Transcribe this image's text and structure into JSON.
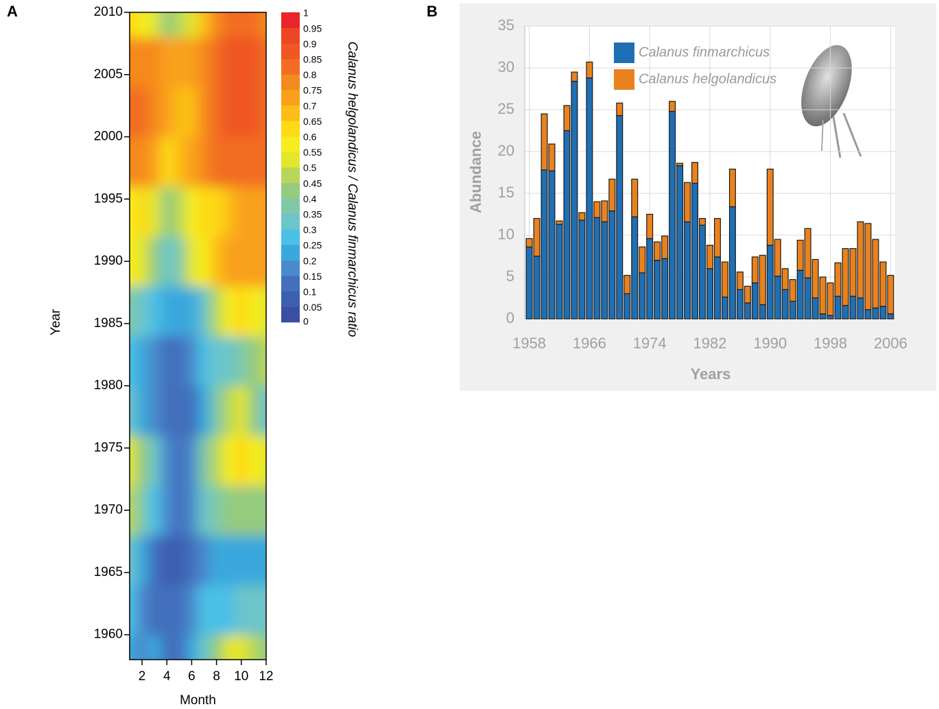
{
  "chart_data": [
    {
      "type": "heatmap",
      "label": "A",
      "xlabel": "Month",
      "ylabel": "Year",
      "x": [
        1,
        2,
        3,
        4,
        5,
        6,
        7,
        8,
        9,
        10,
        11,
        12
      ],
      "y": [
        1958,
        1962,
        1966,
        1970,
        1974,
        1978,
        1982,
        1986,
        1990,
        1994,
        1998,
        2002,
        2006,
        2010
      ],
      "z": [
        [
          0.2,
          0.15,
          0.2,
          0.1,
          0.1,
          0.2,
          0.3,
          0.4,
          0.5,
          0.5,
          0.45,
          0.4
        ],
        [
          0.25,
          0.15,
          0.1,
          0.1,
          0.1,
          0.15,
          0.25,
          0.25,
          0.25,
          0.3,
          0.3,
          0.3
        ],
        [
          0.3,
          0.2,
          0.1,
          0.05,
          0.05,
          0.1,
          0.15,
          0.2,
          0.2,
          0.2,
          0.2,
          0.2
        ],
        [
          0.45,
          0.35,
          0.25,
          0.15,
          0.1,
          0.15,
          0.3,
          0.35,
          0.4,
          0.4,
          0.4,
          0.4
        ],
        [
          0.5,
          0.4,
          0.3,
          0.15,
          0.1,
          0.15,
          0.35,
          0.45,
          0.55,
          0.6,
          0.55,
          0.5
        ],
        [
          0.3,
          0.2,
          0.15,
          0.1,
          0.1,
          0.1,
          0.2,
          0.35,
          0.45,
          0.5,
          0.4,
          0.3
        ],
        [
          0.25,
          0.2,
          0.15,
          0.1,
          0.1,
          0.15,
          0.25,
          0.3,
          0.3,
          0.35,
          0.4,
          0.45
        ],
        [
          0.35,
          0.3,
          0.25,
          0.2,
          0.2,
          0.2,
          0.3,
          0.45,
          0.55,
          0.6,
          0.55,
          0.5
        ],
        [
          0.55,
          0.5,
          0.4,
          0.3,
          0.35,
          0.5,
          0.55,
          0.65,
          0.7,
          0.7,
          0.7,
          0.7
        ],
        [
          0.55,
          0.6,
          0.5,
          0.4,
          0.45,
          0.55,
          0.6,
          0.6,
          0.65,
          0.7,
          0.7,
          0.7
        ],
        [
          0.75,
          0.75,
          0.7,
          0.6,
          0.65,
          0.7,
          0.75,
          0.8,
          0.8,
          0.8,
          0.8,
          0.8
        ],
        [
          0.8,
          0.8,
          0.75,
          0.7,
          0.65,
          0.65,
          0.75,
          0.8,
          0.85,
          0.85,
          0.85,
          0.8
        ],
        [
          0.75,
          0.75,
          0.75,
          0.7,
          0.7,
          0.7,
          0.75,
          0.8,
          0.85,
          0.85,
          0.85,
          0.8
        ],
        [
          0.6,
          0.55,
          0.5,
          0.4,
          0.45,
          0.5,
          0.65,
          0.75,
          0.8,
          0.8,
          0.8,
          0.75
        ]
      ],
      "xlim": [
        1,
        12
      ],
      "xticks": [
        2,
        4,
        6,
        8,
        10,
        12
      ],
      "ylim": [
        1958,
        2010
      ],
      "yticks": [
        1960,
        1965,
        1970,
        1975,
        1980,
        1985,
        1990,
        1995,
        2000,
        2005,
        2010
      ],
      "colorbar": {
        "label": "Calanus helgolandicus / Calanus finmarchicus ratio",
        "ticks": [
          0,
          0.05,
          0.1,
          0.15,
          0.2,
          0.25,
          0.3,
          0.35,
          0.4,
          0.45,
          0.5,
          0.55,
          0.6,
          0.65,
          0.7,
          0.75,
          0.8,
          0.85,
          0.9,
          0.95,
          1
        ],
        "colors": [
          "#3a4fa3",
          "#3d5fb0",
          "#4270bd",
          "#4a8acb",
          "#3aa8dd",
          "#4cc0e6",
          "#6cc5c9",
          "#7fc9a9",
          "#95cb7f",
          "#b8d758",
          "#e3e62a",
          "#f7ec1e",
          "#fdd916",
          "#fcbd16",
          "#f9a01a",
          "#f58a1f",
          "#f26d21",
          "#ef5723",
          "#ee4525",
          "#e9242a"
        ]
      }
    },
    {
      "type": "bar",
      "label": "B",
      "stacked": true,
      "xlabel": "Years",
      "ylabel": "Abundance",
      "grid": true,
      "x": [
        1958,
        1959,
        1960,
        1961,
        1962,
        1963,
        1964,
        1965,
        1966,
        1967,
        1968,
        1969,
        1970,
        1971,
        1972,
        1973,
        1974,
        1975,
        1976,
        1977,
        1978,
        1979,
        1980,
        1981,
        1982,
        1983,
        1984,
        1985,
        1986,
        1987,
        1988,
        1989,
        1990,
        1991,
        1992,
        1993,
        1994,
        1995,
        1996,
        1997,
        1998,
        1999,
        2000,
        2001,
        2002,
        2003,
        2004,
        2005,
        2006
      ],
      "series": [
        {
          "name": "Calanus finmarchicus",
          "color": "#1f6fb4",
          "values": [
            8.6,
            7.5,
            17.8,
            17.7,
            11.3,
            22.5,
            28.4,
            11.8,
            28.8,
            12.1,
            11.6,
            12.9,
            24.3,
            3,
            12.2,
            5.5,
            9.6,
            7,
            7.2,
            24.8,
            18.3,
            11.6,
            16.2,
            11.2,
            6,
            7.4,
            2.6,
            13.4,
            3.5,
            1.9,
            4.3,
            1.7,
            8.8,
            5.1,
            3.5,
            2.1,
            5.8,
            4.9,
            2.5,
            0.6,
            0.4,
            2.7,
            1.6,
            2.7,
            2.5,
            1.1,
            1.3,
            1.5,
            0.6
          ]
        },
        {
          "name": "Calanus helgolandicus",
          "color": "#e9821e",
          "values": [
            1.0,
            4.5,
            6.7,
            3.2,
            0.4,
            3.0,
            1.1,
            0.9,
            1.9,
            1.9,
            2.5,
            3.8,
            1.5,
            2.2,
            4.5,
            3.1,
            2.9,
            2.2,
            2.7,
            1.2,
            0.3,
            4.7,
            2.5,
            0.8,
            2.8,
            4.6,
            4.2,
            4.5,
            2.1,
            2.0,
            3.1,
            5.9,
            9.1,
            4.4,
            2.5,
            2.6,
            3.6,
            5.9,
            4.6,
            4.4,
            3.9,
            4.0,
            6.8,
            5.7,
            9.1,
            10.3,
            8.2,
            5.3,
            4.6
          ]
        }
      ],
      "xlim": [
        1957.4,
        2006.6
      ],
      "xticks": [
        1958,
        1966,
        1974,
        1982,
        1990,
        1998,
        2006
      ],
      "ylim": [
        0,
        35
      ],
      "yticks": [
        0,
        5,
        10,
        15,
        20,
        25,
        30,
        35
      ]
    }
  ]
}
